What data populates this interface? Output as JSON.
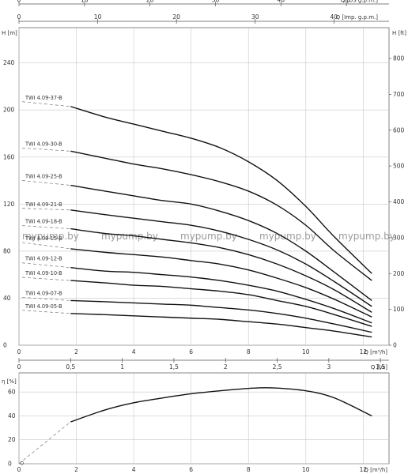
{
  "chart_data": [
    {
      "type": "line",
      "top_axes": [
        {
          "unit": "Q [US g.p.m.]",
          "ticks": [
            "0",
            "10",
            "20",
            "30",
            "40",
            "50"
          ],
          "values": [
            0,
            10,
            20,
            30,
            40,
            50
          ],
          "lim": [
            0,
            56.5
          ]
        },
        {
          "unit": "Q [Imp. g.p.m.]",
          "ticks": [
            "0",
            "10",
            "20",
            "30",
            "40",
            "50"
          ],
          "values": [
            0,
            10,
            20,
            30,
            40,
            50
          ],
          "lim": [
            0,
            47.0
          ]
        }
      ],
      "ylabel": "H [m]",
      "ylim": [
        0,
        270
      ],
      "yticks": [
        "0",
        "40",
        "80",
        "120",
        "160",
        "200",
        "240"
      ],
      "yticks_values": [
        0,
        40,
        80,
        120,
        160,
        200,
        240
      ],
      "ylabel_right": "H [ft]",
      "ylim_right": [
        0,
        886
      ],
      "yticks_right": [
        "0",
        "100",
        "200",
        "300",
        "400",
        "500",
        "600",
        "700",
        "800"
      ],
      "yticks_right_values": [
        0,
        100,
        200,
        300,
        400,
        500,
        600,
        700,
        800
      ],
      "xlabel": "Q [m³/h]",
      "xlim": [
        0,
        12.9
      ],
      "xticks": [
        "0",
        "2",
        "4",
        "6",
        "8",
        "10",
        "12"
      ],
      "xticks_values": [
        0,
        2,
        4,
        6,
        8,
        10,
        12
      ],
      "grid": true,
      "series": [
        {
          "name": "TWI 4.09-37-B",
          "x": [
            1.8,
            3,
            4,
            5,
            6,
            7,
            8,
            9,
            10,
            11,
            12.3
          ],
          "y": [
            203,
            194,
            188,
            182,
            176,
            168,
            156,
            140,
            118,
            92,
            61
          ]
        },
        {
          "name": "TWI 4.09-30-B",
          "x": [
            1.8,
            3,
            4,
            5,
            6,
            7,
            8,
            9,
            10,
            11,
            12.3
          ],
          "y": [
            165,
            159,
            154,
            150,
            145,
            139,
            131,
            119,
            102,
            80,
            55
          ]
        },
        {
          "name": "TWI 4.09-25-B",
          "x": [
            1.8,
            3,
            4,
            5,
            6,
            7,
            8,
            9,
            10,
            11,
            12.3
          ],
          "y": [
            136,
            131,
            127,
            123,
            120,
            114,
            106,
            95,
            80,
            62,
            38
          ]
        },
        {
          "name": "TWI 4.09-21-B",
          "x": [
            1.8,
            3,
            4,
            5,
            6,
            7,
            8,
            9,
            10,
            11,
            12.3
          ],
          "y": [
            115,
            111,
            108,
            105,
            102,
            97,
            90,
            81,
            69,
            54,
            33
          ]
        },
        {
          "name": "TWI 4.09-18-B",
          "x": [
            1.8,
            3,
            4,
            5,
            6,
            7,
            8,
            9,
            10,
            11,
            12.3
          ],
          "y": [
            99,
            95,
            93,
            90,
            87,
            83,
            77,
            69,
            59,
            47,
            28
          ]
        },
        {
          "name": "TWI 4.09-15-B",
          "x": [
            1.8,
            3,
            4,
            5,
            6,
            7,
            8,
            9,
            10,
            11,
            12.3
          ],
          "y": [
            82,
            79,
            77,
            75,
            72,
            69,
            64,
            57,
            49,
            39,
            24
          ]
        },
        {
          "name": "TWI 4.09-12-B",
          "x": [
            1.8,
            3,
            4,
            5,
            6,
            7,
            8,
            9,
            10,
            11,
            12.3
          ],
          "y": [
            66,
            63,
            62,
            60,
            58,
            55,
            51,
            46,
            39,
            31,
            19
          ]
        },
        {
          "name": "TWI 4.09-10-B",
          "x": [
            1.8,
            3,
            4,
            5,
            6,
            7,
            8,
            9,
            10,
            11,
            12.3
          ],
          "y": [
            55,
            53,
            51,
            50,
            48,
            46,
            43,
            38,
            33,
            26,
            16
          ]
        },
        {
          "name": "TWI 4.09-07-B",
          "x": [
            1.8,
            3,
            4,
            5,
            6,
            7,
            8,
            9,
            10,
            11,
            12.3
          ],
          "y": [
            38,
            37,
            36,
            35,
            34,
            32,
            30,
            27,
            23,
            18,
            11
          ]
        },
        {
          "name": "TWI 4.09-05-B",
          "x": [
            1.8,
            3,
            4,
            5,
            6,
            7,
            8,
            9,
            10,
            11,
            12.3
          ],
          "y": [
            27,
            26,
            25,
            24,
            23,
            22,
            20,
            18,
            15,
            12,
            7
          ]
        }
      ]
    },
    {
      "type": "line",
      "top_axis": {
        "unit": "Q [l/s]",
        "ticks": [
          "0",
          "0,5",
          "1",
          "1,5",
          "2",
          "2,5",
          "3",
          "3,5"
        ],
        "values": [
          0,
          0.5,
          1,
          1.5,
          2,
          2.5,
          3,
          3.5
        ],
        "lim": [
          0,
          3.583
        ]
      },
      "ylabel": "η [%]",
      "ylim": [
        0,
        76
      ],
      "yticks": [
        "0",
        "20",
        "40",
        "60"
      ],
      "yticks_values": [
        0,
        20,
        40,
        60
      ],
      "xlabel": "Q [m³/h]",
      "xlim": [
        0,
        12.9
      ],
      "xticks": [
        "0",
        "2",
        "4",
        "6",
        "8",
        "10",
        "12"
      ],
      "xticks_values": [
        0,
        2,
        4,
        6,
        8,
        10,
        12
      ],
      "grid": true,
      "series": [
        {
          "x": [
            1.8,
            3,
            4,
            5,
            6,
            7,
            8,
            8.8,
            10,
            11,
            12.3
          ],
          "y": [
            35,
            45,
            51,
            55,
            58.5,
            61,
            63,
            63.5,
            61,
            55,
            40
          ]
        }
      ]
    }
  ],
  "watermark": [
    "mypump.by",
    "mypump.by",
    "mypump.by",
    "mypump.by",
    "mypump.by"
  ]
}
